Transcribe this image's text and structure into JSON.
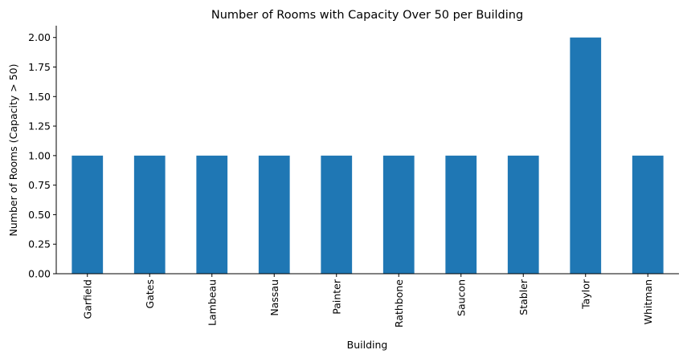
{
  "chart_data": {
    "type": "bar",
    "title": "Number of Rooms with Capacity Over 50 per Building",
    "xlabel": "Building",
    "ylabel": "Number of Rooms (Capacity > 50)",
    "categories": [
      "Garfield",
      "Gates",
      "Lambeau",
      "Nassau",
      "Painter",
      "Rathbone",
      "Saucon",
      "Stabler",
      "Taylor",
      "Whitman"
    ],
    "values": [
      1,
      1,
      1,
      1,
      1,
      1,
      1,
      1,
      2,
      1
    ],
    "ylim": [
      0,
      2.1
    ],
    "yticks": [
      0.0,
      0.25,
      0.5,
      0.75,
      1.0,
      1.25,
      1.5,
      1.75,
      2.0
    ],
    "ytick_labels": [
      "0.00",
      "0.25",
      "0.50",
      "0.75",
      "1.00",
      "1.25",
      "1.50",
      "1.75",
      "2.00"
    ],
    "bar_color": "#1f77b4",
    "grid": false,
    "legend": false
  }
}
